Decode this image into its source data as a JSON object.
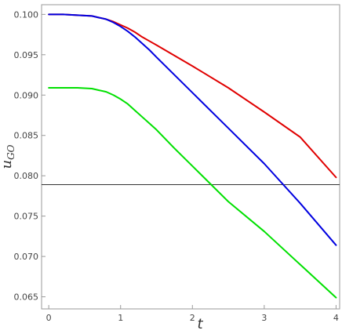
{
  "chart_data": {
    "type": "line",
    "title": "",
    "xlabel": "t",
    "ylabel": "u",
    "ylabel_subscript": "GO",
    "xlim": [
      -0.1,
      4.05
    ],
    "ylim": [
      0.0635,
      0.1012
    ],
    "x_ticks": [
      0,
      1,
      2,
      3,
      4
    ],
    "y_ticks": [
      0.065,
      0.07,
      0.075,
      0.08,
      0.085,
      0.09,
      0.095,
      0.1
    ],
    "x_tick_labels": [
      "0",
      "1",
      "2",
      "3",
      "4"
    ],
    "y_tick_labels": [
      "0.065",
      "0.070",
      "0.075",
      "0.080",
      "0.085",
      "0.090",
      "0.095",
      "0.100"
    ],
    "grid": false,
    "x": [
      0,
      0.2,
      0.4,
      0.6,
      0.7,
      0.8,
      0.9,
      1.0,
      1.1,
      1.2,
      1.3,
      1.4,
      1.5,
      1.75,
      2.0,
      2.5,
      3.0,
      3.5,
      4.0
    ],
    "series": [
      {
        "color": "#e00000",
        "values": [
          0.1,
          0.1,
          0.0999,
          0.0998,
          0.0996,
          0.0994,
          0.0991,
          0.0987,
          0.0983,
          0.0978,
          0.0972,
          0.0967,
          0.0962,
          0.0949,
          0.0936,
          0.0909,
          0.0879,
          0.0848,
          0.0798
        ]
      },
      {
        "color": "#0000e0",
        "values": [
          0.1,
          0.1,
          0.0999,
          0.0998,
          0.0996,
          0.0994,
          0.099,
          0.0985,
          0.0979,
          0.0972,
          0.0964,
          0.0956,
          0.0947,
          0.0925,
          0.0903,
          0.0859,
          0.0815,
          0.0766,
          0.0714
        ]
      },
      {
        "color": "#00e000",
        "values": [
          0.0909,
          0.0909,
          0.0909,
          0.0908,
          0.0906,
          0.0904,
          0.09,
          0.0895,
          0.0889,
          0.0881,
          0.0873,
          0.0865,
          0.0857,
          0.0834,
          0.0812,
          0.0768,
          0.0731,
          0.069,
          0.0649
        ]
      }
    ],
    "reference_lines": [
      {
        "orientation": "horizontal",
        "y": 0.0789,
        "color": "#333333"
      }
    ]
  }
}
